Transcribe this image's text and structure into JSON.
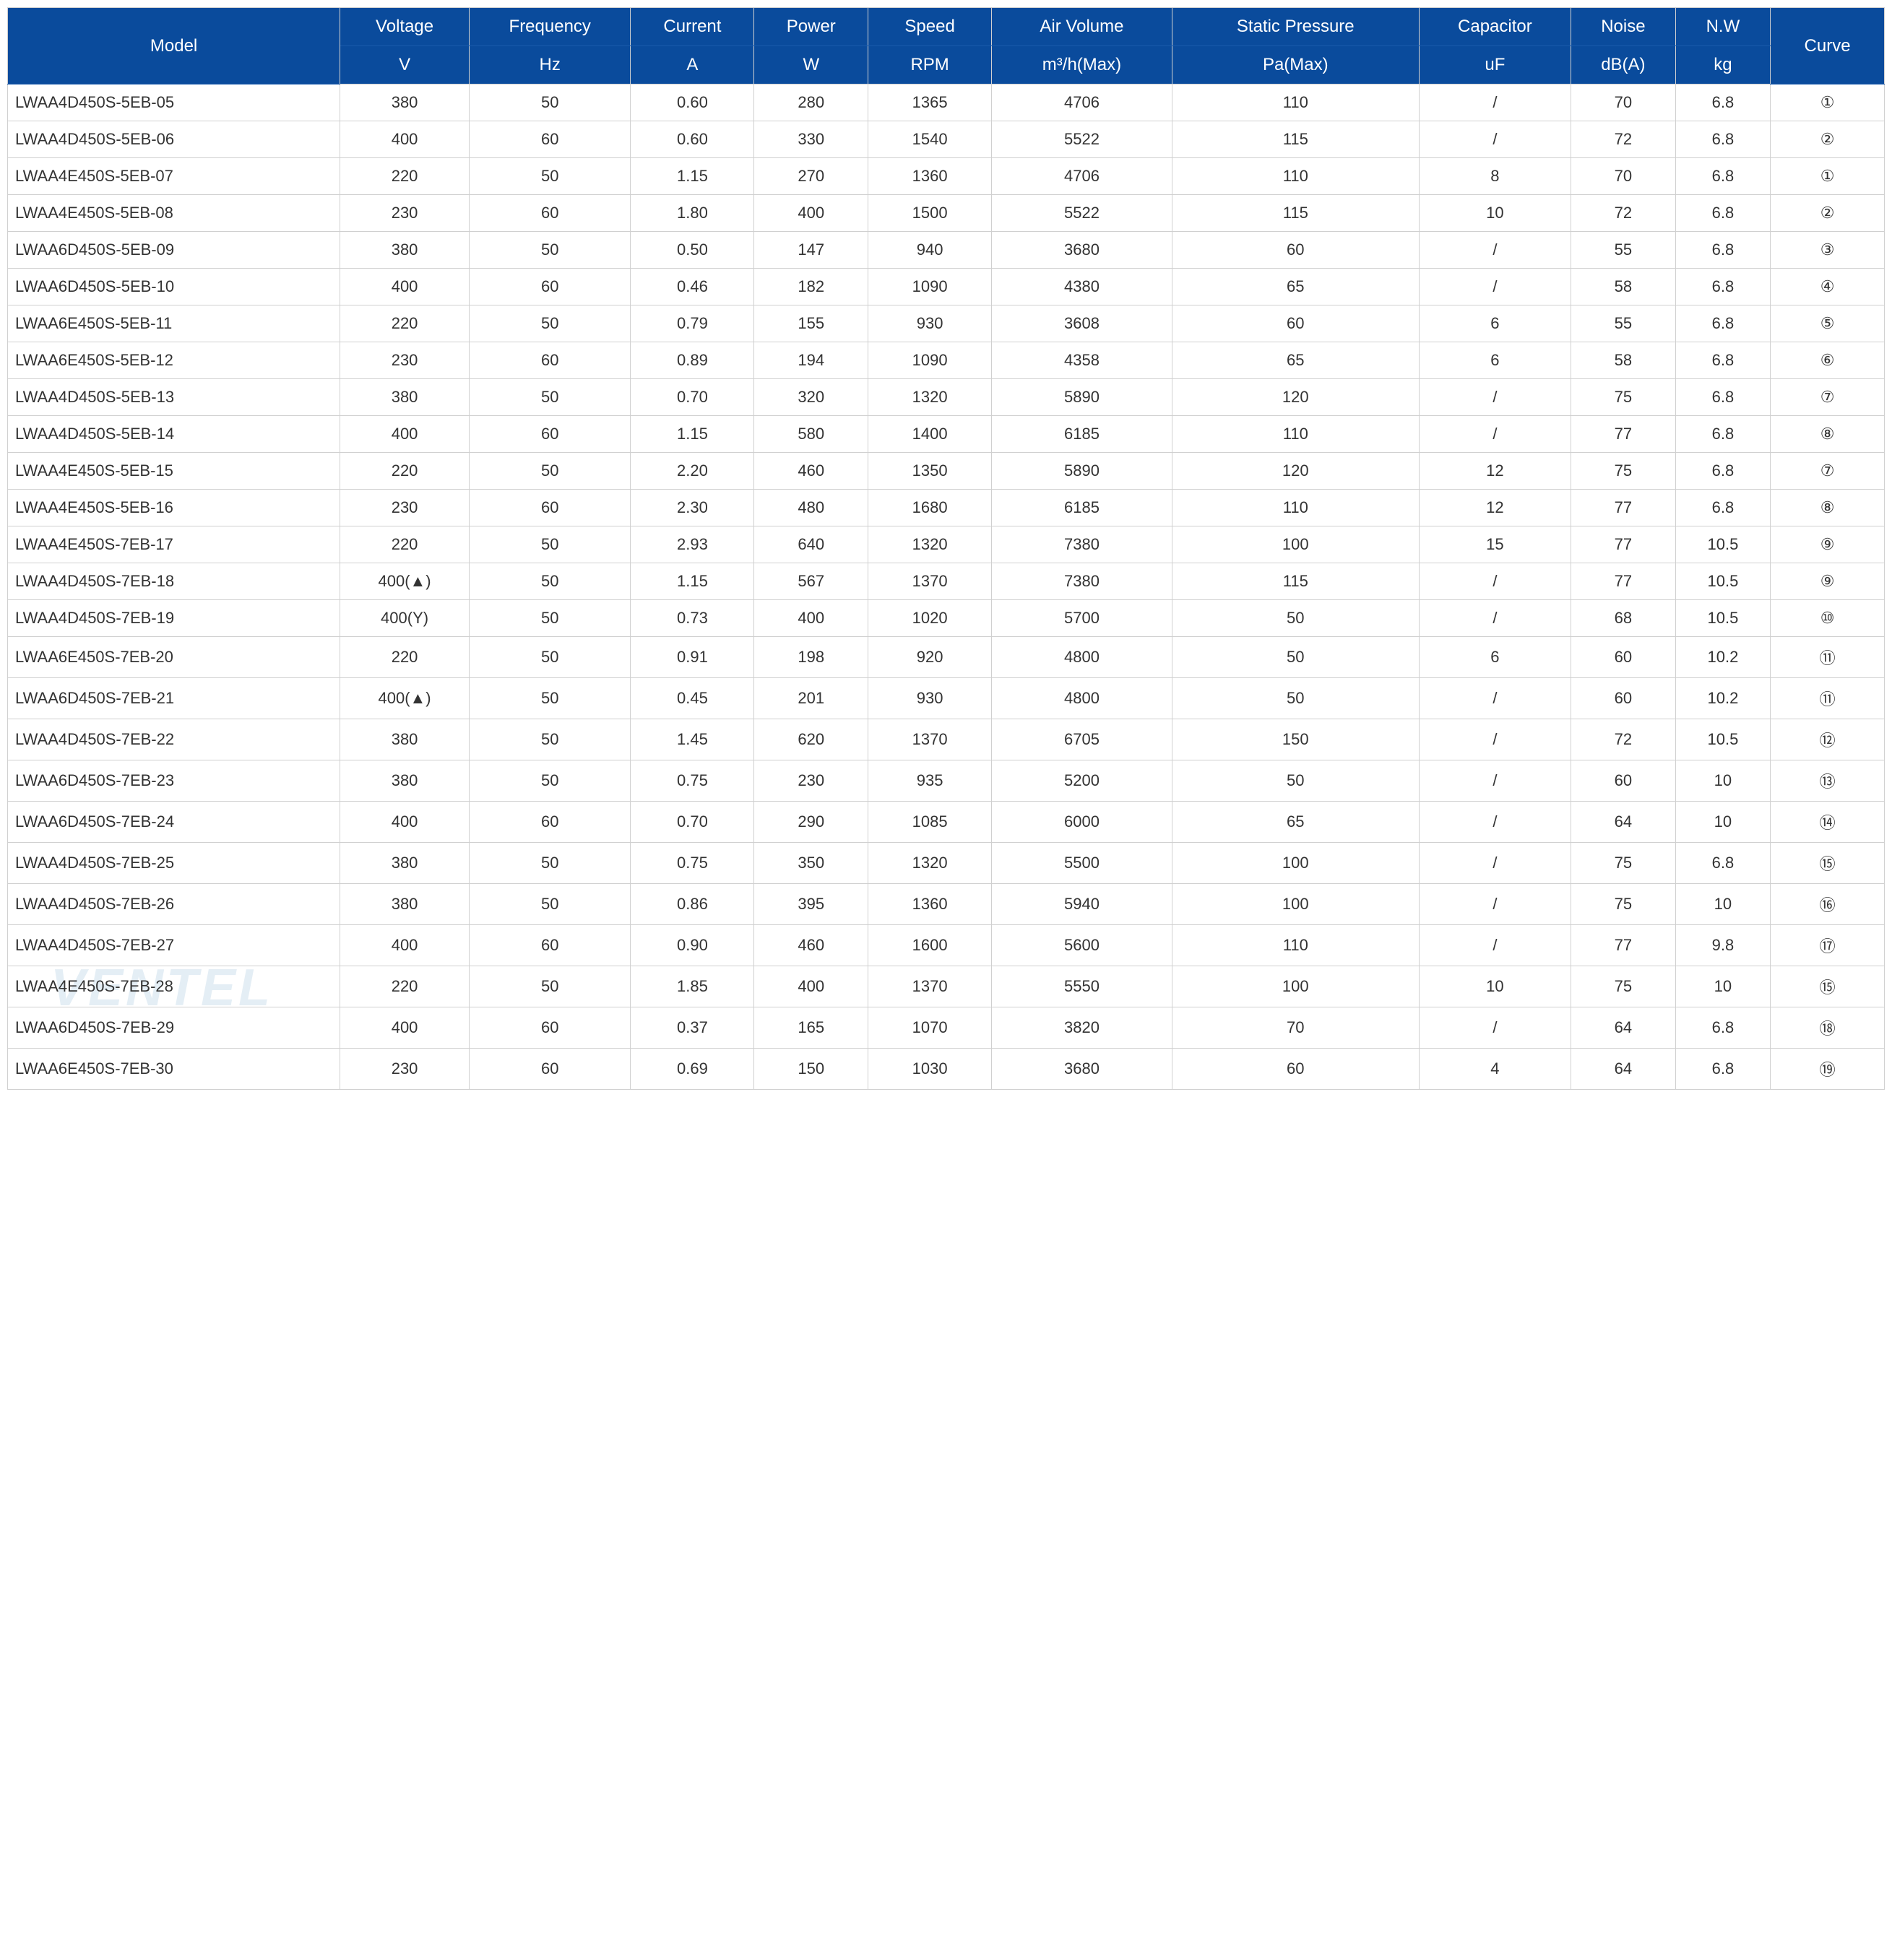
{
  "table": {
    "header_bg": "#0a4b9c",
    "header_color": "#ffffff",
    "border_color": "#d0d0d0",
    "text_color": "#333333",
    "font_family": "Arial",
    "header_fontsize": 24,
    "body_fontsize": 22,
    "columns": [
      {
        "key": "model",
        "label": "Model",
        "unit": "",
        "width_pct": 17.5,
        "align": "left"
      },
      {
        "key": "voltage",
        "label": "Voltage",
        "unit": "V",
        "width_pct": 6.8,
        "align": "center"
      },
      {
        "key": "frequency",
        "label": "Frequency",
        "unit": "Hz",
        "width_pct": 8.5,
        "align": "center"
      },
      {
        "key": "current",
        "label": "Current",
        "unit": "A",
        "width_pct": 6.5,
        "align": "center"
      },
      {
        "key": "power",
        "label": "Power",
        "unit": "W",
        "width_pct": 6,
        "align": "center"
      },
      {
        "key": "speed",
        "label": "Speed",
        "unit": "RPM",
        "width_pct": 6.5,
        "align": "center"
      },
      {
        "key": "airvolume",
        "label": "Air Volume",
        "unit": "m³/h(Max)",
        "width_pct": 9.5,
        "align": "center"
      },
      {
        "key": "pressure",
        "label": "Static Pressure",
        "unit": "Pa(Max)",
        "width_pct": 13,
        "align": "center"
      },
      {
        "key": "capacitor",
        "label": "Capacitor",
        "unit": "uF",
        "width_pct": 8,
        "align": "center"
      },
      {
        "key": "noise",
        "label": "Noise",
        "unit": "dB(A)",
        "width_pct": 5.5,
        "align": "center"
      },
      {
        "key": "nw",
        "label": "N.W",
        "unit": "kg",
        "width_pct": 5,
        "align": "center"
      },
      {
        "key": "curve",
        "label": "Curve",
        "unit": "",
        "width_pct": 6,
        "align": "center"
      }
    ],
    "rows": [
      [
        "LWAA4D450S-5EB-05",
        "380",
        "50",
        "0.60",
        "280",
        "1365",
        "4706",
        "110",
        "/",
        "70",
        "6.8",
        "①"
      ],
      [
        "LWAA4D450S-5EB-06",
        "400",
        "60",
        "0.60",
        "330",
        "1540",
        "5522",
        "115",
        "/",
        "72",
        "6.8",
        "②"
      ],
      [
        "LWAA4E450S-5EB-07",
        "220",
        "50",
        "1.15",
        "270",
        "1360",
        "4706",
        "110",
        "8",
        "70",
        "6.8",
        "①"
      ],
      [
        "LWAA4E450S-5EB-08",
        "230",
        "60",
        "1.80",
        "400",
        "1500",
        "5522",
        "115",
        "10",
        "72",
        "6.8",
        "②"
      ],
      [
        "LWAA6D450S-5EB-09",
        "380",
        "50",
        "0.50",
        "147",
        "940",
        "3680",
        "60",
        "/",
        "55",
        "6.8",
        "③"
      ],
      [
        "LWAA6D450S-5EB-10",
        "400",
        "60",
        "0.46",
        "182",
        "1090",
        "4380",
        "65",
        "/",
        "58",
        "6.8",
        "④"
      ],
      [
        "LWAA6E450S-5EB-11",
        "220",
        "50",
        "0.79",
        "155",
        "930",
        "3608",
        "60",
        "6",
        "55",
        "6.8",
        "⑤"
      ],
      [
        "LWAA6E450S-5EB-12",
        "230",
        "60",
        "0.89",
        "194",
        "1090",
        "4358",
        "65",
        "6",
        "58",
        "6.8",
        "⑥"
      ],
      [
        "LWAA4D450S-5EB-13",
        "380",
        "50",
        "0.70",
        "320",
        "1320",
        "5890",
        "120",
        "/",
        "75",
        "6.8",
        "⑦"
      ],
      [
        "LWAA4D450S-5EB-14",
        "400",
        "60",
        "1.15",
        "580",
        "1400",
        "6185",
        "110",
        "/",
        "77",
        "6.8",
        "⑧"
      ],
      [
        "LWAA4E450S-5EB-15",
        "220",
        "50",
        "2.20",
        "460",
        "1350",
        "5890",
        "120",
        "12",
        "75",
        "6.8",
        "⑦"
      ],
      [
        "LWAA4E450S-5EB-16",
        "230",
        "60",
        "2.30",
        "480",
        "1680",
        "6185",
        "110",
        "12",
        "77",
        "6.8",
        "⑧"
      ],
      [
        "LWAA4E450S-7EB-17",
        "220",
        "50",
        "2.93",
        "640",
        "1320",
        "7380",
        "100",
        "15",
        "77",
        "10.5",
        "⑨"
      ],
      [
        "LWAA4D450S-7EB-18",
        "400(▲)",
        "50",
        "1.15",
        "567",
        "1370",
        "7380",
        "115",
        "/",
        "77",
        "10.5",
        "⑨"
      ],
      [
        "LWAA4D450S-7EB-19",
        "400(Y)",
        "50",
        "0.73",
        "400",
        "1020",
        "5700",
        "50",
        "/",
        "68",
        "10.5",
        "⑩"
      ],
      [
        "LWAA6E450S-7EB-20",
        "220",
        "50",
        "0.91",
        "198",
        "920",
        "4800",
        "50",
        "6",
        "60",
        "10.2",
        "⑪"
      ],
      [
        "LWAA6D450S-7EB-21",
        "400(▲)",
        "50",
        "0.45",
        "201",
        "930",
        "4800",
        "50",
        "/",
        "60",
        "10.2",
        "⑪"
      ],
      [
        "LWAA4D450S-7EB-22",
        "380",
        "50",
        "1.45",
        "620",
        "1370",
        "6705",
        "150",
        "/",
        "72",
        "10.5",
        "⑫"
      ],
      [
        "LWAA6D450S-7EB-23",
        "380",
        "50",
        "0.75",
        "230",
        "935",
        "5200",
        "50",
        "/",
        "60",
        "10",
        "⑬"
      ],
      [
        "LWAA6D450S-7EB-24",
        "400",
        "60",
        "0.70",
        "290",
        "1085",
        "6000",
        "65",
        "/",
        "64",
        "10",
        "⑭"
      ],
      [
        "LWAA4D450S-7EB-25",
        "380",
        "50",
        "0.75",
        "350",
        "1320",
        "5500",
        "100",
        "/",
        "75",
        "6.8",
        "⑮"
      ],
      [
        "LWAA4D450S-7EB-26",
        "380",
        "50",
        "0.86",
        "395",
        "1360",
        "5940",
        "100",
        "/",
        "75",
        "10",
        "⑯"
      ],
      [
        "LWAA4D450S-7EB-27",
        "400",
        "60",
        "0.90",
        "460",
        "1600",
        "5600",
        "110",
        "/",
        "77",
        "9.8",
        "⑰"
      ],
      [
        "LWAA4E450S-7EB-28",
        "220",
        "50",
        "1.85",
        "400",
        "1370",
        "5550",
        "100",
        "10",
        "75",
        "10",
        "⑮"
      ],
      [
        "LWAA6D450S-7EB-29",
        "400",
        "60",
        "0.37",
        "165",
        "1070",
        "3820",
        "70",
        "/",
        "64",
        "6.8",
        "⑱"
      ],
      [
        "LWAA6E450S-7EB-30",
        "230",
        "60",
        "0.69",
        "150",
        "1030",
        "3680",
        "60",
        "4",
        "64",
        "6.8",
        "⑲"
      ]
    ]
  },
  "watermark": {
    "text": "VENTEL",
    "color": "#5090c0",
    "opacity": 0.15,
    "fontsize": 72
  }
}
